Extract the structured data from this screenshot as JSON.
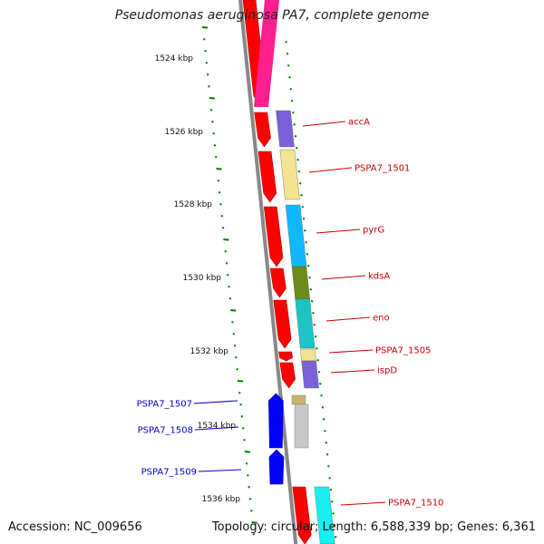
{
  "title": "Pseudomonas aeruginosa PA7, complete genome",
  "accession": "Accession: NC_009656",
  "summary": "Topology: circular; Length: 6,588,339 bp; Genes: 6,361",
  "colors": {
    "backbone": "#888888",
    "cds_forward": "#ff0000",
    "cds_reverse": "#0000ff",
    "tick": "#008000",
    "label_forward": "#cc0000",
    "label_reverse": "#0000cc"
  },
  "scale_labels": [
    "1524 kbp",
    "1526 kbp",
    "1528 kbp",
    "1530 kbp",
    "1532 kbp",
    "1534 kbp",
    "1536 kbp"
  ],
  "genes_forward": [
    {
      "label": "accA",
      "color": "#7b61d9"
    },
    {
      "label": "PSPA7_1501",
      "color": "#f3e291"
    },
    {
      "label": "pyrG",
      "color": "#11b8ff"
    },
    {
      "label": "kdsA",
      "color": "#6b8c1a"
    },
    {
      "label": "eno",
      "color": "#1cc4c4"
    },
    {
      "label": "PSPA7_1505",
      "color": "#f3e291"
    },
    {
      "label": "ispD",
      "color": "#7b61d9"
    },
    {
      "label": "PSPA7_1510",
      "color": "#19eef0"
    }
  ],
  "genes_reverse": [
    {
      "label": "PSPA7_1507",
      "color": "#c8b46a"
    },
    {
      "label": "PSPA7_1508",
      "color": "#c8c8c8"
    },
    {
      "label": "PSPA7_1509",
      "color": "#0000ff"
    }
  ]
}
